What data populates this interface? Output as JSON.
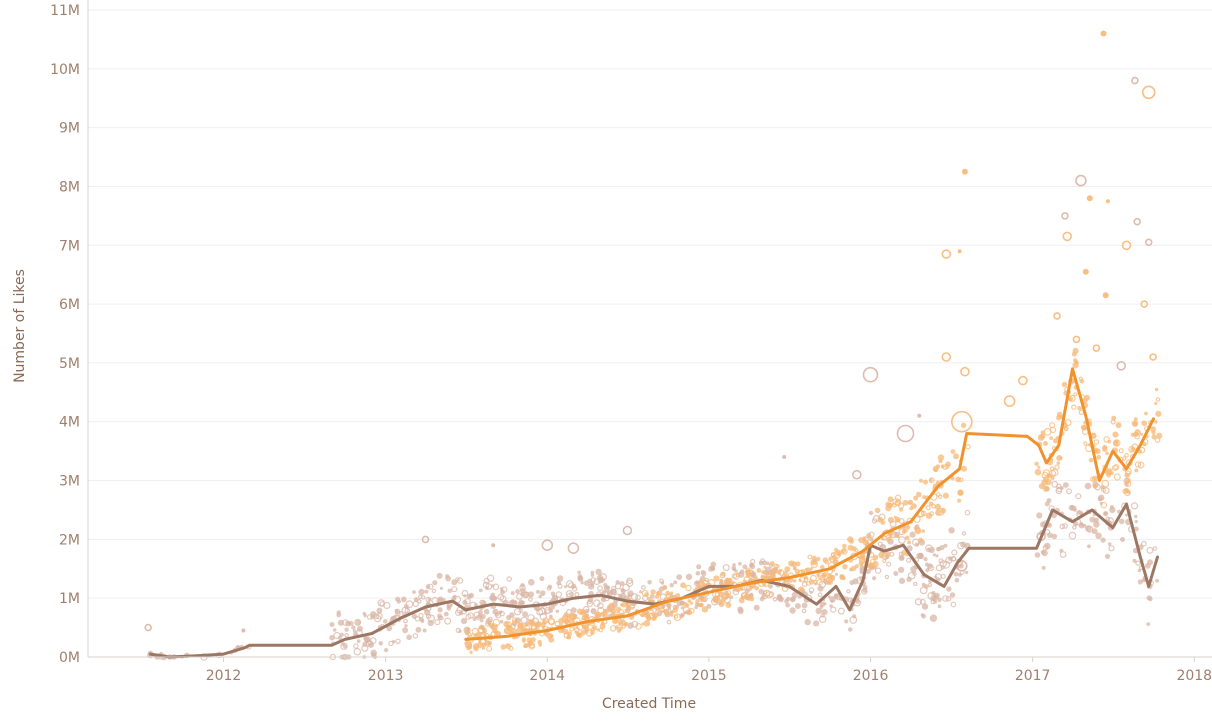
{
  "chart_data": {
    "type": "scatter",
    "xlabel": "Created Time",
    "ylabel": "Number of Likes",
    "x_ticks": [
      "2012",
      "2013",
      "2014",
      "2015",
      "2016",
      "2017",
      "2018"
    ],
    "y_ticks": [
      "0M",
      "1M",
      "2M",
      "3M",
      "4M",
      "5M",
      "6M",
      "7M",
      "8M",
      "9M",
      "10M",
      "11M"
    ],
    "xlim": [
      "2011-03-01",
      "2018-02-10"
    ],
    "ylim": [
      0,
      11
    ],
    "y_unit": "M",
    "grid": true,
    "colors": {
      "brown_line": "#9c7763",
      "brown_points": "#d9b5a6",
      "orange_line": "#f0922e",
      "orange_points": "#f7b877",
      "axis": "#d9d2cd",
      "grid": "#efefef"
    },
    "series": [
      {
        "kind": "line",
        "color_key": "brown_line",
        "points": [
          [
            "2011-07-20",
            0.05
          ],
          [
            "2011-09-01",
            0.0
          ],
          [
            "2011-11-01",
            0.02
          ],
          [
            "2012-01-01",
            0.05
          ],
          [
            "2012-02-15",
            0.15
          ],
          [
            "2012-03-01",
            0.2
          ],
          [
            "2012-09-01",
            0.2
          ],
          [
            "2012-10-01",
            0.3
          ],
          [
            "2012-12-01",
            0.4
          ],
          [
            "2013-02-01",
            0.65
          ],
          [
            "2013-04-01",
            0.85
          ],
          [
            "2013-06-01",
            0.95
          ],
          [
            "2013-07-01",
            0.8
          ],
          [
            "2013-09-01",
            0.9
          ],
          [
            "2013-11-01",
            0.85
          ],
          [
            "2014-01-01",
            0.9
          ],
          [
            "2014-03-01",
            1.0
          ],
          [
            "2014-05-01",
            1.05
          ],
          [
            "2014-07-01",
            0.95
          ],
          [
            "2014-09-01",
            0.9
          ],
          [
            "2014-11-01",
            1.0
          ],
          [
            "2015-01-01",
            1.2
          ],
          [
            "2015-03-01",
            1.2
          ],
          [
            "2015-05-01",
            1.3
          ],
          [
            "2015-07-01",
            1.2
          ],
          [
            "2015-09-01",
            0.9
          ],
          [
            "2015-10-15",
            1.2
          ],
          [
            "2015-11-15",
            0.8
          ],
          [
            "2015-12-15",
            1.3
          ],
          [
            "2016-01-01",
            1.9
          ],
          [
            "2016-02-01",
            1.8
          ],
          [
            "2016-03-15",
            1.9
          ],
          [
            "2016-05-01",
            1.4
          ],
          [
            "2016-06-15",
            1.2
          ],
          [
            "2016-07-15",
            1.6
          ],
          [
            "2016-08-10",
            1.85
          ],
          [
            "2017-01-10",
            1.85
          ],
          [
            "2017-02-15",
            2.5
          ],
          [
            "2017-04-01",
            2.3
          ],
          [
            "2017-05-15",
            2.5
          ],
          [
            "2017-07-01",
            2.2
          ],
          [
            "2017-08-01",
            2.6
          ],
          [
            "2017-09-01",
            1.7
          ],
          [
            "2017-09-20",
            1.2
          ],
          [
            "2017-10-10",
            1.7
          ]
        ]
      },
      {
        "kind": "line",
        "color_key": "orange_line",
        "points": [
          [
            "2013-07-01",
            0.3
          ],
          [
            "2013-10-01",
            0.35
          ],
          [
            "2014-01-01",
            0.45
          ],
          [
            "2014-04-01",
            0.6
          ],
          [
            "2014-07-01",
            0.7
          ],
          [
            "2014-10-01",
            0.95
          ],
          [
            "2015-01-01",
            1.1
          ],
          [
            "2015-04-01",
            1.25
          ],
          [
            "2015-07-01",
            1.35
          ],
          [
            "2015-10-01",
            1.5
          ],
          [
            "2015-12-15",
            1.8
          ],
          [
            "2016-02-01",
            2.1
          ],
          [
            "2016-04-01",
            2.3
          ],
          [
            "2016-06-01",
            2.9
          ],
          [
            "2016-07-20",
            3.2
          ],
          [
            "2016-08-05",
            3.8
          ],
          [
            "2016-12-20",
            3.75
          ],
          [
            "2017-01-15",
            3.6
          ],
          [
            "2017-02-01",
            3.3
          ],
          [
            "2017-03-01",
            3.6
          ],
          [
            "2017-04-01",
            4.9
          ],
          [
            "2017-05-01",
            4.1
          ],
          [
            "2017-06-01",
            3.0
          ],
          [
            "2017-07-01",
            3.5
          ],
          [
            "2017-08-01",
            3.2
          ],
          [
            "2017-09-01",
            3.6
          ],
          [
            "2017-10-01",
            4.05
          ]
        ]
      }
    ],
    "point_clouds": [
      {
        "color_key": "brown_points",
        "segments": [
          [
            "2011-07-15",
            "2012-03-01",
            0.05,
            0.08
          ],
          [
            "2012-09-01",
            "2013-12-31",
            0.4,
            0.55
          ],
          [
            "2014-01-01",
            "2015-12-31",
            0.35,
            0.5
          ],
          [
            "2016-01-01",
            "2016-08-10",
            0.6,
            0.55
          ],
          [
            "2017-01-10",
            "2017-10-15",
            0.55,
            0.45
          ]
        ]
      },
      {
        "color_key": "orange_points",
        "segments": [
          [
            "2013-07-01",
            "2014-06-30",
            0.2,
            0.6
          ],
          [
            "2014-07-01",
            "2015-12-31",
            0.25,
            0.5
          ],
          [
            "2016-01-01",
            "2016-08-10",
            0.45,
            0.5
          ],
          [
            "2017-01-10",
            "2017-10-15",
            0.5,
            0.6
          ]
        ]
      }
    ],
    "outliers": [
      {
        "date": "2011-07-15",
        "value": 0.5,
        "r": 3,
        "hollow": true,
        "color_key": "brown_points"
      },
      {
        "date": "2012-02-15",
        "value": 0.45,
        "r": 2,
        "hollow": false,
        "color_key": "brown_points"
      },
      {
        "date": "2013-04-01",
        "value": 2.0,
        "r": 3,
        "hollow": true,
        "color_key": "brown_points"
      },
      {
        "date": "2013-09-01",
        "value": 1.9,
        "r": 2,
        "hollow": false,
        "color_key": "brown_points"
      },
      {
        "date": "2014-01-01",
        "value": 1.9,
        "r": 5,
        "hollow": true,
        "color_key": "brown_points"
      },
      {
        "date": "2014-03-01",
        "value": 1.85,
        "r": 5,
        "hollow": true,
        "color_key": "brown_points"
      },
      {
        "date": "2014-07-01",
        "value": 2.15,
        "r": 4,
        "hollow": true,
        "color_key": "brown_points"
      },
      {
        "date": "2015-06-20",
        "value": 3.4,
        "r": 2,
        "hollow": false,
        "color_key": "brown_points"
      },
      {
        "date": "2015-12-01",
        "value": 3.1,
        "r": 4,
        "hollow": true,
        "color_key": "brown_points"
      },
      {
        "date": "2016-01-01",
        "value": 4.8,
        "r": 7,
        "hollow": true,
        "color_key": "brown_points"
      },
      {
        "date": "2016-03-20",
        "value": 3.8,
        "r": 8,
        "hollow": true,
        "color_key": "brown_points"
      },
      {
        "date": "2016-04-20",
        "value": 4.1,
        "r": 2,
        "hollow": false,
        "color_key": "brown_points"
      },
      {
        "date": "2016-06-20",
        "value": 6.85,
        "r": 4,
        "hollow": true,
        "color_key": "orange_points"
      },
      {
        "date": "2016-06-20",
        "value": 5.1,
        "r": 4,
        "hollow": true,
        "color_key": "orange_points"
      },
      {
        "date": "2016-07-20",
        "value": 6.9,
        "r": 2,
        "hollow": false,
        "color_key": "orange_points"
      },
      {
        "date": "2016-08-01",
        "value": 8.25,
        "r": 3,
        "hollow": false,
        "color_key": "orange_points"
      },
      {
        "date": "2016-08-01",
        "value": 4.85,
        "r": 4,
        "hollow": true,
        "color_key": "orange_points"
      },
      {
        "date": "2016-07-25",
        "value": 4.0,
        "r": 10,
        "hollow": true,
        "color_key": "orange_points"
      },
      {
        "date": "2016-07-25",
        "value": 1.55,
        "r": 5,
        "hollow": true,
        "color_key": "brown_points"
      },
      {
        "date": "2016-11-10",
        "value": 4.35,
        "r": 5,
        "hollow": true,
        "color_key": "orange_points"
      },
      {
        "date": "2016-12-10",
        "value": 4.7,
        "r": 4,
        "hollow": true,
        "color_key": "orange_points"
      },
      {
        "date": "2017-01-20",
        "value": 2.05,
        "r": 4,
        "hollow": true,
        "color_key": "brown_points"
      },
      {
        "date": "2017-03-15",
        "value": 7.5,
        "r": 3,
        "hollow": true,
        "color_key": "brown_points"
      },
      {
        "date": "2017-03-20",
        "value": 7.15,
        "r": 4,
        "hollow": true,
        "color_key": "orange_points"
      },
      {
        "date": "2017-04-20",
        "value": 8.1,
        "r": 5,
        "hollow": true,
        "color_key": "brown_points"
      },
      {
        "date": "2017-05-10",
        "value": 7.8,
        "r": 3,
        "hollow": false,
        "color_key": "orange_points"
      },
      {
        "date": "2017-05-01",
        "value": 6.55,
        "r": 3,
        "hollow": false,
        "color_key": "orange_points"
      },
      {
        "date": "2017-06-10",
        "value": 10.6,
        "r": 3,
        "hollow": false,
        "color_key": "orange_points"
      },
      {
        "date": "2017-06-20",
        "value": 7.75,
        "r": 2,
        "hollow": false,
        "color_key": "orange_points"
      },
      {
        "date": "2017-06-15",
        "value": 6.15,
        "r": 3,
        "hollow": false,
        "color_key": "orange_points"
      },
      {
        "date": "2017-08-01",
        "value": 7.0,
        "r": 4,
        "hollow": true,
        "color_key": "orange_points"
      },
      {
        "date": "2017-08-20",
        "value": 9.8,
        "r": 3,
        "hollow": true,
        "color_key": "brown_points"
      },
      {
        "date": "2017-08-25",
        "value": 7.4,
        "r": 3,
        "hollow": true,
        "color_key": "brown_points"
      },
      {
        "date": "2017-09-20",
        "value": 9.6,
        "r": 6,
        "hollow": true,
        "color_key": "orange_points"
      },
      {
        "date": "2017-09-20",
        "value": 7.05,
        "r": 3,
        "hollow": true,
        "color_key": "brown_points"
      },
      {
        "date": "2017-09-10",
        "value": 6.0,
        "r": 3,
        "hollow": true,
        "color_key": "orange_points"
      },
      {
        "date": "2017-09-30",
        "value": 5.1,
        "r": 3,
        "hollow": true,
        "color_key": "orange_points"
      },
      {
        "date": "2017-07-20",
        "value": 4.95,
        "r": 4,
        "hollow": true,
        "color_key": "brown_points"
      },
      {
        "date": "2017-02-25",
        "value": 5.8,
        "r": 3,
        "hollow": true,
        "color_key": "orange_points"
      },
      {
        "date": "2017-04-10",
        "value": 5.4,
        "r": 3,
        "hollow": true,
        "color_key": "orange_points"
      },
      {
        "date": "2017-05-25",
        "value": 5.25,
        "r": 3,
        "hollow": true,
        "color_key": "orange_points"
      }
    ]
  }
}
